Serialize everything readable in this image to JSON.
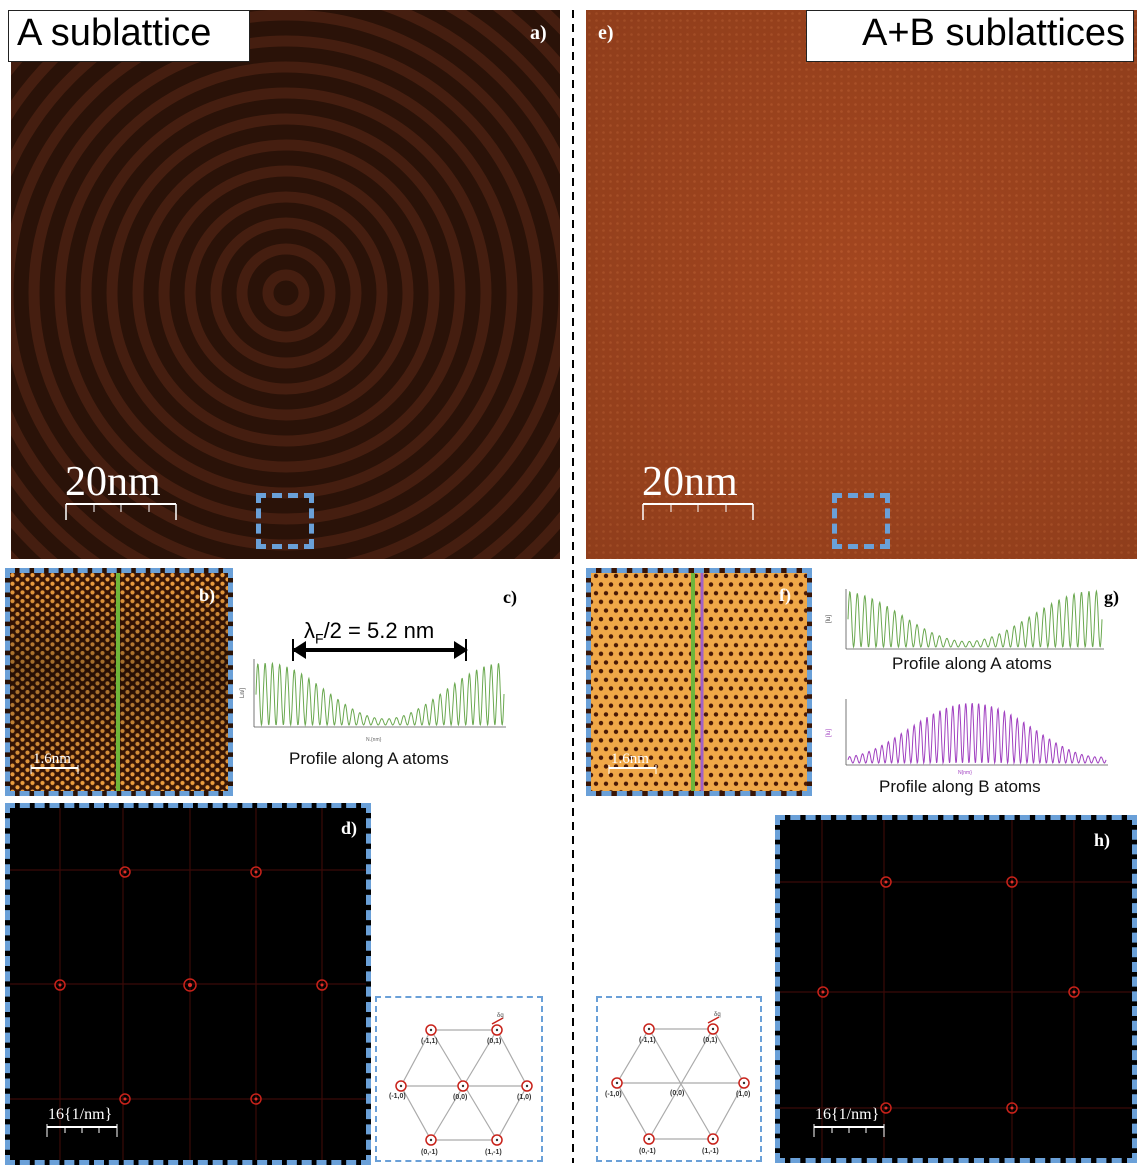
{
  "left": {
    "title": "A sublattice",
    "panel_a": {
      "label": "a)",
      "scale": "20nm"
    },
    "panel_b": {
      "label": "b)",
      "scale": "1.6nm"
    },
    "panel_c": {
      "label": "c)",
      "annotation_lambda": "λ",
      "annotation_sub": "F",
      "annotation_rest": "/2 = 5.2 nm",
      "caption": "Profile along A atoms"
    },
    "panel_d": {
      "label": "d)",
      "scale": "16{1/nm}"
    },
    "lattice": [
      "(-1,1)",
      "(0,1)",
      "(-1,0)",
      "(0,0)",
      "(1,0)",
      "(0,-1)",
      "(1,-1)"
    ]
  },
  "right": {
    "title": "A+B sublattices",
    "panel_e": {
      "label": "e)",
      "scale": "20nm"
    },
    "panel_f": {
      "label": "f)",
      "scale": "1.6nm"
    },
    "panel_g": {
      "label": "g)",
      "caption_a": "Profile along A atoms",
      "caption_b": "Profile along B atoms"
    },
    "panel_h": {
      "label": "h)",
      "scale": "16{1/nm}"
    },
    "lattice": [
      "(-1,1)",
      "(0,1)",
      "(-1,0)",
      "(0,0)",
      "(1,0)",
      "(0,-1)",
      "(1,-1)"
    ]
  },
  "colors": {
    "accent_blue": "#6aa0d8",
    "profile_green": "#6aa84f",
    "profile_purple": "#a040c0",
    "ring_brown": "#3c1a0e"
  }
}
